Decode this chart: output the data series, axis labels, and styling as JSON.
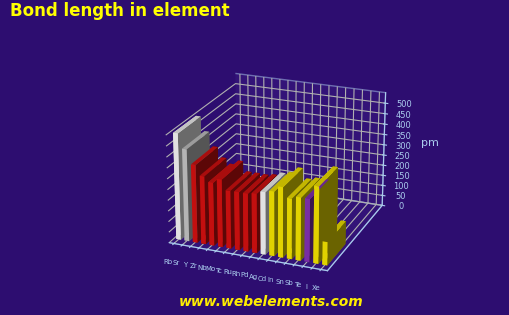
{
  "title": "Bond length in element",
  "ylabel": "pm",
  "website": "www.webelements.com",
  "background_color": "#2d0d70",
  "title_color": "#ffff00",
  "axis_color": "#aaccee",
  "elements": [
    "Rb",
    "Sr",
    "Y",
    "Zr",
    "Nb",
    "Mo",
    "Tc",
    "Ru",
    "Rh",
    "Pd",
    "Ag",
    "Cd",
    "In",
    "Sn",
    "Sb",
    "Te",
    "I",
    "Xe"
  ],
  "values": [
    496,
    430,
    364,
    318,
    294,
    315,
    270,
    270,
    269,
    275,
    289,
    298,
    325,
    280,
    290,
    290,
    354,
    108
  ],
  "colors": [
    "#ffffff",
    "#cccccc",
    "#dd1111",
    "#dd1111",
    "#dd1111",
    "#dd1111",
    "#dd1111",
    "#dd1111",
    "#dd1111",
    "#dd1111",
    "#ffffff",
    "#ffee00",
    "#ffee00",
    "#ffee00",
    "#ffee00",
    "#8833bb",
    "#ffee00",
    "#ffee00"
  ],
  "ylim": [
    0,
    550
  ],
  "yticks": [
    0,
    50,
    100,
    150,
    200,
    250,
    300,
    350,
    400,
    450,
    500
  ],
  "elev": 22,
  "azim": -68,
  "bar_width": 0.55,
  "bar_depth": 0.5
}
